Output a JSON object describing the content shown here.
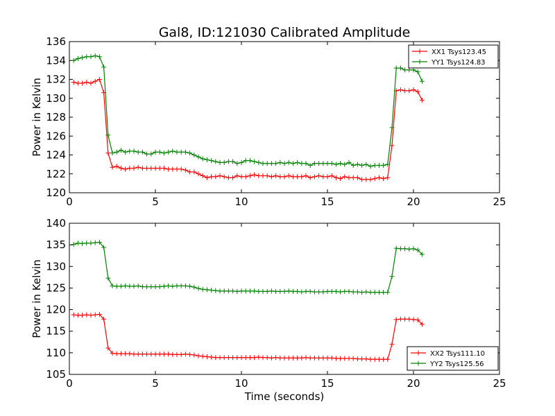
{
  "chart_data": [
    {
      "type": "line",
      "title": "Gal8, ID:121030 Calibrated Amplitude",
      "xlabel": "",
      "ylabel": "Power in Kelvin",
      "xlim": [
        0,
        25
      ],
      "ylim": [
        120,
        136
      ],
      "xticks": [
        "0",
        "5",
        "10",
        "15",
        "20",
        "25"
      ],
      "yticks": [
        "120",
        "122",
        "124",
        "126",
        "128",
        "130",
        "132",
        "134",
        "136"
      ],
      "legend_position": "top-right",
      "x": [
        0.25,
        0.5,
        0.75,
        1.0,
        1.25,
        1.5,
        1.75,
        2.0,
        2.25,
        2.5,
        2.75,
        3.0,
        3.25,
        3.5,
        3.75,
        4.0,
        4.25,
        4.5,
        4.75,
        5.0,
        5.25,
        5.5,
        5.75,
        6.0,
        6.25,
        6.5,
        6.75,
        7.0,
        7.25,
        7.5,
        7.75,
        8.0,
        8.25,
        8.5,
        8.75,
        9.0,
        9.25,
        9.5,
        9.75,
        10.0,
        10.25,
        10.5,
        10.75,
        11.0,
        11.25,
        11.5,
        11.75,
        12.0,
        12.25,
        12.5,
        12.75,
        13.0,
        13.25,
        13.5,
        13.75,
        14.0,
        14.25,
        14.5,
        14.75,
        15.0,
        15.25,
        15.5,
        15.75,
        16.0,
        16.25,
        16.5,
        16.75,
        17.0,
        17.25,
        17.5,
        17.75,
        18.0,
        18.25,
        18.5,
        18.75,
        19.0,
        19.25,
        19.5,
        19.75,
        20.0,
        20.25,
        20.5
      ],
      "series": [
        {
          "name": "XX1 Tsys123.45",
          "color": "#ff0000",
          "values": [
            131.7,
            131.6,
            131.6,
            131.7,
            131.6,
            131.8,
            132.0,
            130.6,
            124.2,
            122.7,
            122.8,
            122.6,
            122.5,
            122.6,
            122.6,
            122.7,
            122.6,
            122.6,
            122.6,
            122.6,
            122.6,
            122.6,
            122.5,
            122.5,
            122.5,
            122.5,
            122.4,
            122.2,
            122.2,
            122.0,
            121.8,
            121.6,
            121.7,
            121.7,
            121.8,
            121.7,
            121.6,
            121.6,
            121.8,
            121.7,
            121.7,
            121.8,
            121.9,
            121.8,
            121.8,
            121.8,
            121.7,
            121.8,
            121.7,
            121.7,
            121.8,
            121.7,
            121.7,
            121.7,
            121.8,
            121.6,
            121.7,
            121.8,
            121.7,
            121.7,
            121.8,
            121.6,
            121.5,
            121.7,
            121.6,
            121.6,
            121.6,
            121.4,
            121.4,
            121.4,
            121.5,
            121.6,
            121.5,
            121.6,
            125.0,
            130.8,
            130.9,
            130.8,
            130.8,
            130.9,
            130.7,
            129.8
          ]
        },
        {
          "name": "YY1 Tsys124.83",
          "color": "#008000",
          "values": [
            134.0,
            134.2,
            134.3,
            134.4,
            134.4,
            134.5,
            134.4,
            133.3,
            126.1,
            124.2,
            124.3,
            124.5,
            124.3,
            124.4,
            124.4,
            124.3,
            124.3,
            124.1,
            124.1,
            124.3,
            124.3,
            124.2,
            124.3,
            124.4,
            124.3,
            124.3,
            124.3,
            124.2,
            124.0,
            123.8,
            123.6,
            123.5,
            123.4,
            123.3,
            123.2,
            123.2,
            123.3,
            123.3,
            123.1,
            123.2,
            123.4,
            123.4,
            123.3,
            123.2,
            123.1,
            123.1,
            123.1,
            123.1,
            123.2,
            123.1,
            123.2,
            123.1,
            123.2,
            123.1,
            123.1,
            122.9,
            123.1,
            123.1,
            123.1,
            123.1,
            123.1,
            123.0,
            123.1,
            123.0,
            123.2,
            122.9,
            123.0,
            122.9,
            123.0,
            122.8,
            122.9,
            122.9,
            122.9,
            123.0,
            126.9,
            133.2,
            133.2,
            133.0,
            133.0,
            133.0,
            132.8,
            131.8
          ]
        }
      ]
    },
    {
      "type": "line",
      "title": "",
      "xlabel": "Time (seconds)",
      "ylabel": "Power in Kelvin",
      "xlim": [
        0,
        25
      ],
      "ylim": [
        105,
        140
      ],
      "xticks": [
        "0",
        "5",
        "10",
        "15",
        "20",
        "25"
      ],
      "yticks": [
        "105",
        "110",
        "115",
        "120",
        "125",
        "130",
        "135",
        "140"
      ],
      "legend_position": "bottom-right",
      "x": [
        0.25,
        0.5,
        0.75,
        1.0,
        1.25,
        1.5,
        1.75,
        2.0,
        2.25,
        2.5,
        2.75,
        3.0,
        3.25,
        3.5,
        3.75,
        4.0,
        4.25,
        4.5,
        4.75,
        5.0,
        5.25,
        5.5,
        5.75,
        6.0,
        6.25,
        6.5,
        6.75,
        7.0,
        7.25,
        7.5,
        7.75,
        8.0,
        8.25,
        8.5,
        8.75,
        9.0,
        9.25,
        9.5,
        9.75,
        10.0,
        10.25,
        10.5,
        10.75,
        11.0,
        11.25,
        11.5,
        11.75,
        12.0,
        12.25,
        12.5,
        12.75,
        13.0,
        13.25,
        13.5,
        13.75,
        14.0,
        14.25,
        14.5,
        14.75,
        15.0,
        15.25,
        15.5,
        15.75,
        16.0,
        16.25,
        16.5,
        16.75,
        17.0,
        17.25,
        17.5,
        17.75,
        18.0,
        18.25,
        18.5,
        18.75,
        19.0,
        19.25,
        19.5,
        19.75,
        20.0,
        20.25,
        20.5
      ],
      "series": [
        {
          "name": "XX2 Tsys111.10",
          "color": "#ff0000",
          "values": [
            118.8,
            118.7,
            118.7,
            118.8,
            118.7,
            118.8,
            118.9,
            117.8,
            111.1,
            109.9,
            109.8,
            109.8,
            109.8,
            109.8,
            109.7,
            109.7,
            109.7,
            109.7,
            109.7,
            109.7,
            109.7,
            109.7,
            109.7,
            109.6,
            109.6,
            109.6,
            109.7,
            109.6,
            109.5,
            109.3,
            109.2,
            109.1,
            109.0,
            108.9,
            108.9,
            108.9,
            108.9,
            108.9,
            108.9,
            108.9,
            108.9,
            108.9,
            108.9,
            109.0,
            108.9,
            108.9,
            108.8,
            108.9,
            108.8,
            108.8,
            108.8,
            108.8,
            108.8,
            108.8,
            108.9,
            108.8,
            108.8,
            108.8,
            108.8,
            108.8,
            108.8,
            108.7,
            108.7,
            108.7,
            108.7,
            108.7,
            108.6,
            108.6,
            108.6,
            108.5,
            108.5,
            108.5,
            108.5,
            108.5,
            112.0,
            117.7,
            117.8,
            117.8,
            117.8,
            117.7,
            117.6,
            116.6
          ]
        },
        {
          "name": "YY2 Tsys125.56",
          "color": "#008000",
          "values": [
            135.1,
            135.4,
            135.3,
            135.4,
            135.4,
            135.5,
            135.6,
            134.4,
            127.3,
            125.5,
            125.4,
            125.4,
            125.5,
            125.4,
            125.4,
            125.5,
            125.3,
            125.3,
            125.3,
            125.3,
            125.3,
            125.4,
            125.5,
            125.4,
            125.5,
            125.5,
            125.5,
            125.4,
            125.2,
            124.9,
            124.7,
            124.6,
            124.5,
            124.4,
            124.3,
            124.3,
            124.3,
            124.3,
            124.2,
            124.3,
            124.3,
            124.3,
            124.3,
            124.2,
            124.2,
            124.2,
            124.3,
            124.2,
            124.2,
            124.2,
            124.3,
            124.2,
            124.2,
            124.1,
            124.2,
            124.2,
            124.1,
            124.1,
            124.1,
            124.2,
            124.2,
            124.2,
            124.1,
            124.2,
            124.2,
            124.1,
            124.1,
            124.0,
            124.1,
            124.0,
            124.0,
            124.0,
            124.0,
            124.0,
            127.7,
            134.2,
            134.1,
            134.1,
            134.0,
            134.1,
            133.8,
            132.8
          ]
        }
      ]
    }
  ]
}
